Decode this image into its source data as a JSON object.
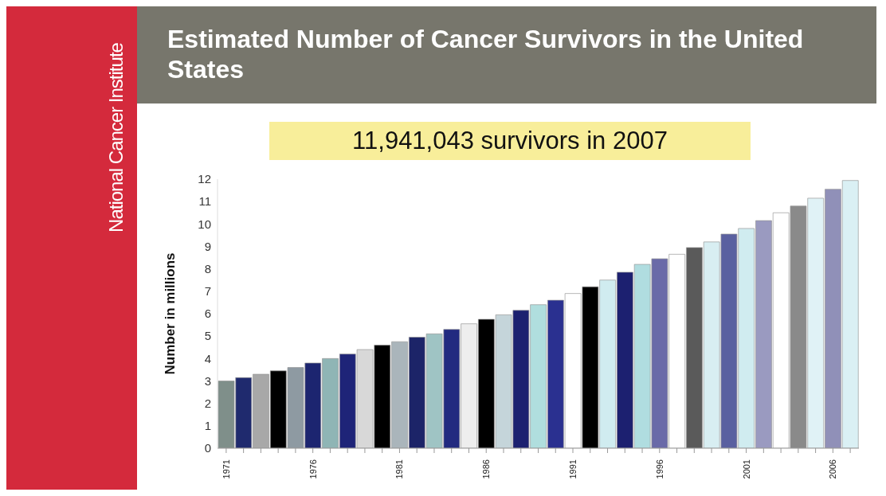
{
  "chart_data": {
    "type": "bar",
    "title": "Estimated Number of Cancer Survivors in the United States",
    "subtitle": "11,941,043 survivors in 2007",
    "ylabel": "Number in millions",
    "annotations": [
      "National Cancer Institute"
    ],
    "categories": [
      "1971",
      null,
      null,
      null,
      null,
      "1976",
      null,
      null,
      null,
      null,
      "1981",
      null,
      null,
      null,
      null,
      "1986",
      null,
      null,
      null,
      null,
      "1991",
      null,
      null,
      null,
      null,
      "1996",
      null,
      null,
      null,
      null,
      "2001",
      null,
      null,
      null,
      null,
      "2006",
      null
    ],
    "values": [
      3.0,
      3.15,
      3.3,
      3.45,
      3.6,
      3.8,
      4.0,
      4.2,
      4.4,
      4.6,
      4.75,
      4.95,
      5.1,
      5.3,
      5.55,
      5.75,
      5.95,
      6.15,
      6.4,
      6.6,
      6.9,
      7.2,
      7.5,
      7.85,
      8.2,
      8.45,
      8.65,
      8.95,
      9.2,
      9.55,
      9.8,
      10.15,
      10.5,
      10.8,
      11.15,
      11.55,
      11.94
    ],
    "colors": [
      "#7f8f8a",
      "#1f2a6e",
      "#a8a8a8",
      "#000000",
      "#8e9aa2",
      "#1c2570",
      "#8fb5b5",
      "#1e2478",
      "#d8d8d8",
      "#000000",
      "#aab5bb",
      "#1c2468",
      "#9fc4c4",
      "#222a80",
      "#eeeeee",
      "#000000",
      "#c5d5da",
      "#1c2070",
      "#b0dede",
      "#2a3090",
      "#ffffff",
      "#000000",
      "#d0ecf0",
      "#1c2070",
      "#b0dde0",
      "#6a6aa8",
      "#ffffff",
      "#5a5a5a",
      "#d8eef2",
      "#5a60a0",
      "#d0ecf0",
      "#9a9ac0",
      "#ffffff",
      "#8a8a8a",
      "#e0f2f6",
      "#9090b8",
      "#daf0f4"
    ],
    "ylim": [
      0,
      12
    ],
    "yticks": [
      0,
      1,
      2,
      3,
      4,
      5,
      6,
      7,
      8,
      9,
      10,
      11,
      12
    ],
    "grid": false,
    "legend": false
  }
}
